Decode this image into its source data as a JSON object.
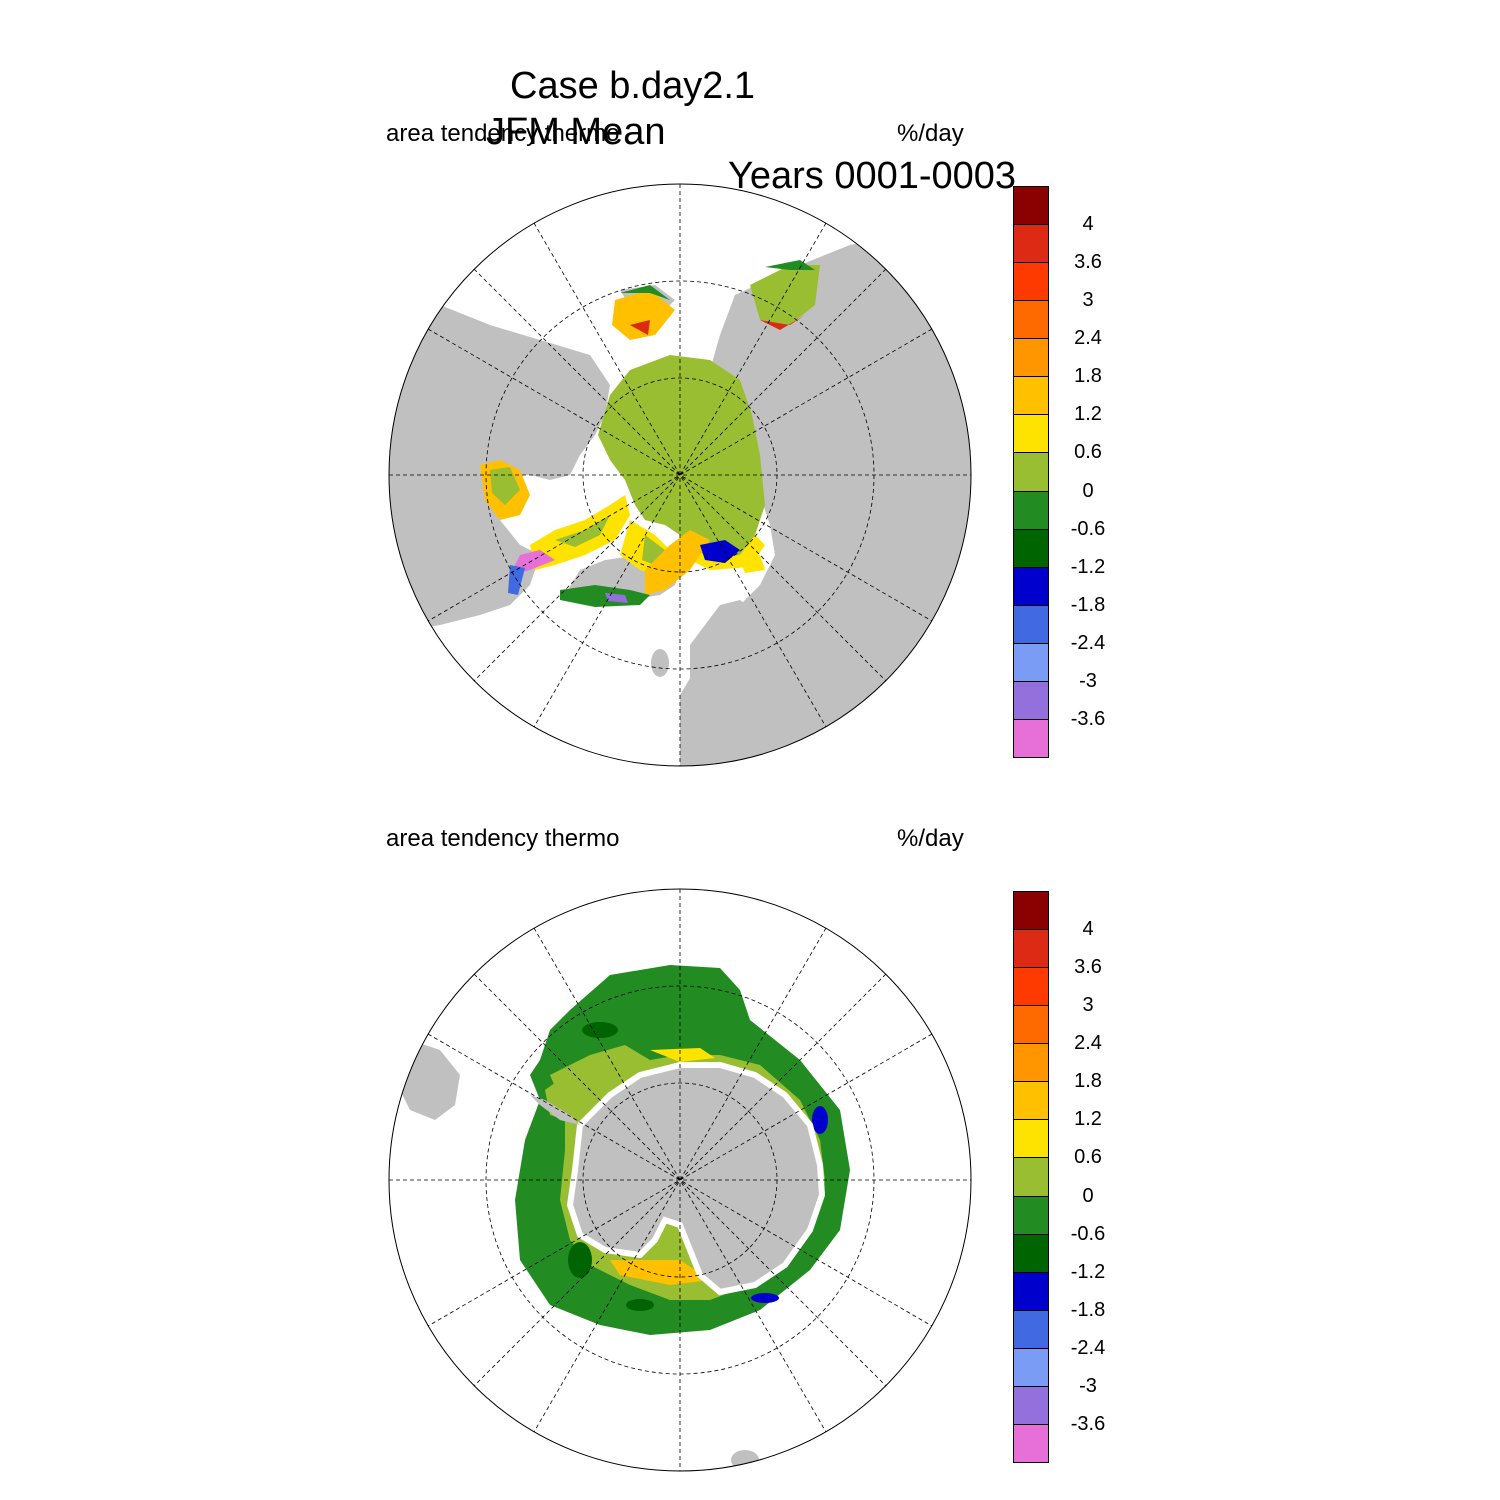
{
  "title": {
    "line1": "Case b.day2.1",
    "line2_left": "JFM Mean",
    "line2_right": "Years 0001-0003"
  },
  "panels": [
    {
      "name": "north",
      "left_label": "area tendency thermo",
      "right_label": "%/day",
      "hemisphere": "northern"
    },
    {
      "name": "south",
      "left_label": "area tendency thermo",
      "right_label": "%/day",
      "hemisphere": "southern"
    }
  ],
  "colorbar": {
    "labels": [
      "4",
      "3.6",
      "3",
      "2.4",
      "1.8",
      "1.2",
      "0.6",
      "0",
      "-0.6",
      "-1.2",
      "-1.8",
      "-2.4",
      "-3",
      "-3.6"
    ],
    "colors": [
      "#8b0000",
      "#dc2a14",
      "#ff3a00",
      "#ff6a00",
      "#ff9600",
      "#ffc000",
      "#ffe300",
      "#9abe32",
      "#228b22",
      "#006400",
      "#0000cd",
      "#4169e1",
      "#7b9cf5",
      "#9370db",
      "#e670d8"
    ]
  },
  "colors": {
    "land": "#c0c0c0",
    "ocean": "#ffffff"
  }
}
